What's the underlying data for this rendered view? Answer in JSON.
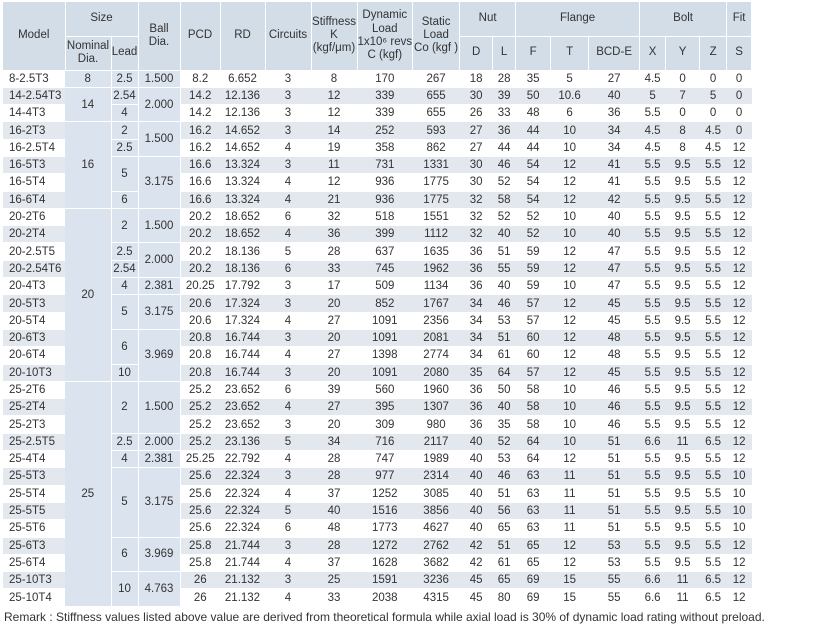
{
  "headers": {
    "model": "Model",
    "size": "Size",
    "nominal_dia_1": "Nominal",
    "nominal_dia_2": "Dia.",
    "lead": "Lead",
    "ball_dia_1": "Ball",
    "ball_dia_2": "Dia.",
    "pcd": "PCD",
    "rd": "RD",
    "circuits": "Circuits",
    "stiffness_1": "Stiffness",
    "stiffness_2": "K",
    "stiffness_3": "(kgf/μm)",
    "dynamic_1": "Dynamic",
    "dynamic_2": "Load",
    "dynamic_3": "1x10⁶ revs",
    "dynamic_4": "C (kgf)",
    "static_1": "Static",
    "static_2": "Load",
    "static_3": "Co (kgf )",
    "nut": "Nut",
    "nut_d": "D",
    "nut_l": "L",
    "flange": "Flange",
    "flange_f": "F",
    "flange_t": "T",
    "flange_bcd": "BCD-E",
    "bolt": "Bolt",
    "bolt_x": "X",
    "bolt_y": "Y",
    "bolt_z": "Z",
    "fit": "Fit",
    "fit_s": "S"
  },
  "rows": [
    [
      "8-2.5T3",
      "8",
      "2.5",
      "1.500",
      "8.2",
      "6.652",
      "3",
      "8",
      "170",
      "267",
      "18",
      "28",
      "35",
      "5",
      "27",
      "4.5",
      "0",
      "0",
      "0"
    ],
    [
      "14-2.54T3",
      "14",
      "2.54",
      "2.000",
      "14.2",
      "12.136",
      "3",
      "12",
      "339",
      "655",
      "30",
      "39",
      "50",
      "10.6",
      "40",
      "5",
      "7",
      "5",
      "0"
    ],
    [
      "14-4T3",
      "",
      "4",
      "",
      "14.2",
      "12.136",
      "3",
      "12",
      "339",
      "655",
      "26",
      "33",
      "48",
      "6",
      "36",
      "5.5",
      "0",
      "0",
      "0"
    ],
    [
      "16-2T3",
      "16",
      "2",
      "1.500",
      "16.2",
      "14.652",
      "3",
      "14",
      "252",
      "593",
      "27",
      "36",
      "44",
      "10",
      "34",
      "4.5",
      "8",
      "4.5",
      "0"
    ],
    [
      "16-2.5T4",
      "",
      "2.5",
      "",
      "16.2",
      "14.652",
      "4",
      "19",
      "358",
      "862",
      "27",
      "44",
      "44",
      "10",
      "34",
      "4.5",
      "8",
      "4.5",
      "12"
    ],
    [
      "16-5T3",
      "",
      "5",
      "3.175",
      "16.6",
      "13.324",
      "3",
      "11",
      "731",
      "1331",
      "30",
      "46",
      "54",
      "12",
      "41",
      "5.5",
      "9.5",
      "5.5",
      "12"
    ],
    [
      "16-5T4",
      "",
      "",
      "",
      "16.6",
      "13.324",
      "4",
      "12",
      "936",
      "1775",
      "30",
      "52",
      "54",
      "12",
      "41",
      "5.5",
      "9.5",
      "5.5",
      "12"
    ],
    [
      "16-6T4",
      "",
      "6",
      "",
      "16.6",
      "13.324",
      "4",
      "21",
      "936",
      "1775",
      "32",
      "58",
      "54",
      "12",
      "42",
      "5.5",
      "9.5",
      "5.5",
      "12"
    ],
    [
      "20-2T6",
      "20",
      "2",
      "1.500",
      "20.2",
      "18.652",
      "6",
      "32",
      "518",
      "1551",
      "32",
      "52",
      "52",
      "10",
      "40",
      "5.5",
      "9.5",
      "5.5",
      "12"
    ],
    [
      "20-2T4",
      "",
      "",
      "",
      "20.2",
      "18.652",
      "4",
      "36",
      "399",
      "1112",
      "32",
      "40",
      "52",
      "10",
      "40",
      "5.5",
      "9.5",
      "5.5",
      "12"
    ],
    [
      "20-2.5T5",
      "",
      "2.5",
      "2.000",
      "20.2",
      "18.136",
      "5",
      "28",
      "637",
      "1635",
      "36",
      "51",
      "59",
      "12",
      "47",
      "5.5",
      "9.5",
      "5.5",
      "12"
    ],
    [
      "20-2.54T6",
      "",
      "2.54",
      "",
      "20.2",
      "18.136",
      "6",
      "33",
      "745",
      "1962",
      "36",
      "55",
      "59",
      "12",
      "47",
      "5.5",
      "9.5",
      "5.5",
      "12"
    ],
    [
      "20-4T3",
      "",
      "4",
      "2.381",
      "20.25",
      "17.792",
      "3",
      "17",
      "509",
      "1134",
      "36",
      "40",
      "59",
      "10",
      "47",
      "5.5",
      "9.5",
      "5.5",
      "12"
    ],
    [
      "20-5T3",
      "",
      "5",
      "3.175",
      "20.6",
      "17.324",
      "3",
      "20",
      "852",
      "1767",
      "34",
      "46",
      "57",
      "12",
      "45",
      "5.5",
      "9.5",
      "5.5",
      "12"
    ],
    [
      "20-5T4",
      "",
      "",
      "",
      "20.6",
      "17.324",
      "4",
      "27",
      "1091",
      "2356",
      "34",
      "53",
      "57",
      "12",
      "45",
      "5.5",
      "9.5",
      "5.5",
      "12"
    ],
    [
      "20-6T3",
      "",
      "6",
      "3.969",
      "20.8",
      "16.744",
      "3",
      "20",
      "1091",
      "2081",
      "34",
      "51",
      "60",
      "12",
      "48",
      "5.5",
      "9.5",
      "5.5",
      "12"
    ],
    [
      "20-6T4",
      "",
      "",
      "",
      "20.8",
      "16.744",
      "4",
      "27",
      "1398",
      "2774",
      "34",
      "61",
      "60",
      "12",
      "48",
      "5.5",
      "9.5",
      "5.5",
      "12"
    ],
    [
      "20-10T3",
      "",
      "10",
      "",
      "20.8",
      "16.744",
      "3",
      "20",
      "1091",
      "2080",
      "35",
      "64",
      "57",
      "12",
      "45",
      "5.5",
      "9.5",
      "5.5",
      "12"
    ],
    [
      "25-2T6",
      "25",
      "2",
      "1.500",
      "25.2",
      "23.652",
      "6",
      "39",
      "560",
      "1960",
      "36",
      "50",
      "58",
      "10",
      "46",
      "5.5",
      "9.5",
      "5.5",
      "12"
    ],
    [
      "25-2T4",
      "",
      "",
      "",
      "25.2",
      "23.652",
      "4",
      "27",
      "395",
      "1307",
      "36",
      "40",
      "58",
      "10",
      "46",
      "5.5",
      "9.5",
      "5.5",
      "12"
    ],
    [
      "25-2T3",
      "",
      "",
      "",
      "25.2",
      "23.652",
      "3",
      "20",
      "309",
      "980",
      "36",
      "35",
      "58",
      "10",
      "46",
      "5.5",
      "9.5",
      "5.5",
      "12"
    ],
    [
      "25-2.5T5",
      "",
      "2.5",
      "2.000",
      "25.2",
      "23.136",
      "5",
      "34",
      "716",
      "2117",
      "40",
      "52",
      "64",
      "10",
      "51",
      "6.6",
      "11",
      "6.5",
      "12"
    ],
    [
      "25-4T4",
      "",
      "4",
      "2.381",
      "25.25",
      "22.792",
      "4",
      "28",
      "747",
      "1989",
      "40",
      "53",
      "64",
      "12",
      "51",
      "5.5",
      "9.5",
      "5.5",
      "12"
    ],
    [
      "25-5T3",
      "",
      "5",
      "3.175",
      "25.6",
      "22.324",
      "3",
      "28",
      "977",
      "2314",
      "40",
      "46",
      "63",
      "11",
      "51",
      "5.5",
      "9.5",
      "5.5",
      "10"
    ],
    [
      "25-5T4",
      "",
      "",
      "",
      "25.6",
      "22.324",
      "4",
      "37",
      "1252",
      "3085",
      "40",
      "51",
      "63",
      "11",
      "51",
      "5.5",
      "9.5",
      "5.5",
      "10"
    ],
    [
      "25-5T5",
      "",
      "",
      "",
      "25.6",
      "22.324",
      "5",
      "40",
      "1516",
      "3856",
      "40",
      "56",
      "63",
      "11",
      "51",
      "5.5",
      "9.5",
      "5.5",
      "10"
    ],
    [
      "25-5T6",
      "",
      "",
      "",
      "25.6",
      "22.324",
      "6",
      "48",
      "1773",
      "4627",
      "40",
      "65",
      "63",
      "11",
      "51",
      "5.5",
      "9.5",
      "5.5",
      "10"
    ],
    [
      "25-6T3",
      "",
      "6",
      "3.969",
      "25.8",
      "21.744",
      "3",
      "28",
      "1272",
      "2762",
      "42",
      "51",
      "65",
      "12",
      "53",
      "5.5",
      "9.5",
      "5.5",
      "12"
    ],
    [
      "25-6T4",
      "",
      "",
      "",
      "25.8",
      "21.744",
      "4",
      "37",
      "1628",
      "3682",
      "42",
      "61",
      "65",
      "12",
      "53",
      "5.5",
      "9.5",
      "5.5",
      "12"
    ],
    [
      "25-10T3",
      "",
      "10",
      "4.763",
      "26",
      "21.132",
      "3",
      "25",
      "1591",
      "3236",
      "45",
      "65",
      "69",
      "15",
      "55",
      "6.6",
      "11",
      "6.5",
      "12"
    ],
    [
      "25-10T4",
      "",
      "",
      "",
      "26",
      "21.132",
      "4",
      "33",
      "2038",
      "4315",
      "45",
      "80",
      "69",
      "15",
      "55",
      "6.6",
      "11",
      "6.5",
      "12"
    ]
  ],
  "remark": "Remark : Stiffness values listed above value are derived from theoretical formula while axial load is 30% of dynamic load rating without preload."
}
